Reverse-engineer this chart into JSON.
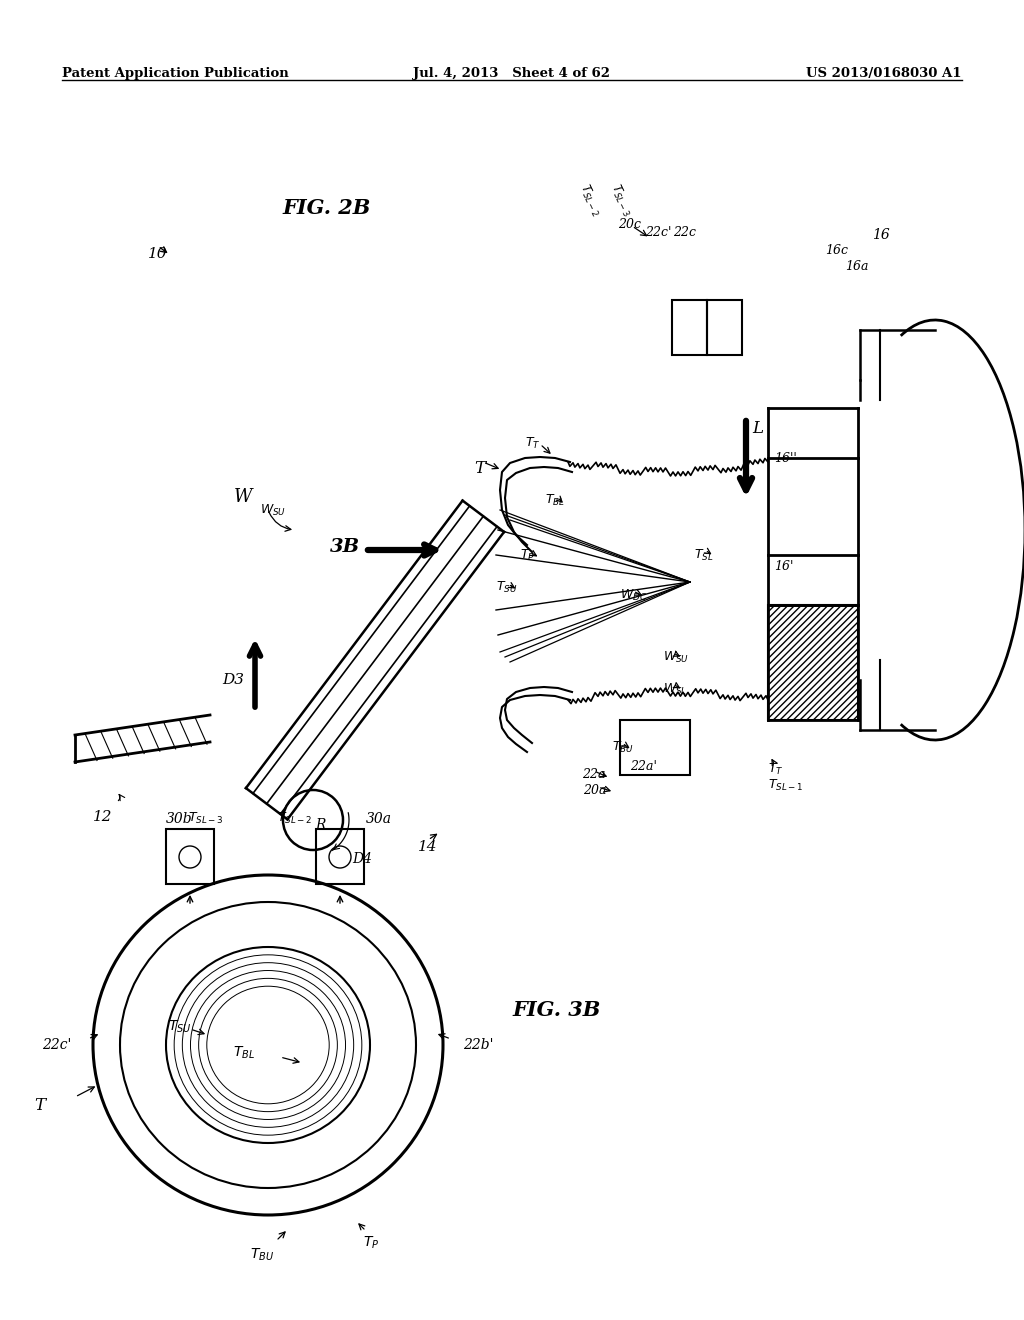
{
  "header_left": "Patent Application Publication",
  "header_mid": "Jul. 4, 2013   Sheet 4 of 62",
  "header_right": "US 2013/0168030 A1",
  "fig2b_label": "FIG. 2B",
  "fig3b_label": "FIG. 3B",
  "bg_color": "#ffffff",
  "line_color": "#000000"
}
